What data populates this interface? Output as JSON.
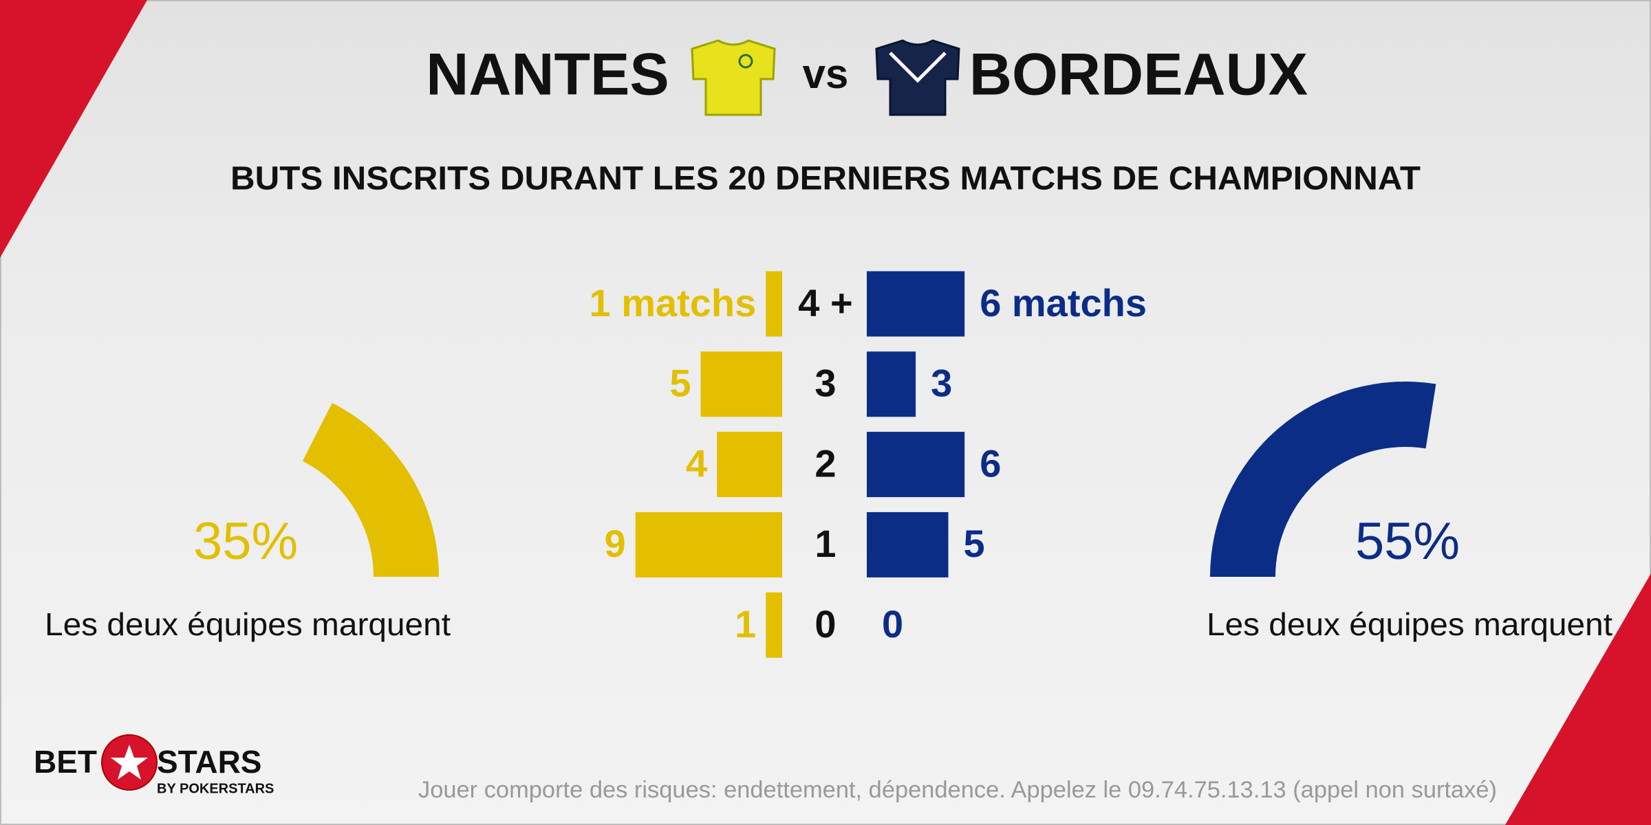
{
  "header": {
    "home_team": "NANTES",
    "versus": "vs",
    "away_team": "BORDEAUX",
    "subtitle": "BUTS INSCRITS DURANT LES 20 DERNIERS MATCHS DE CHAMPIONNAT"
  },
  "chart_data": [
    {
      "type": "butterfly",
      "categories": [
        "4 +",
        "3",
        "2",
        "1",
        "0"
      ],
      "series": [
        {
          "color": "#e3bf00",
          "values": [
            1,
            5,
            4,
            9,
            1
          ],
          "value_labels": [
            "1 matchs",
            "5",
            "4",
            "9",
            "1"
          ]
        },
        {
          "color": "#0b2d86",
          "values": [
            6,
            3,
            6,
            5,
            0
          ],
          "value_labels": [
            "6 matchs",
            "3",
            "6",
            "5",
            "0"
          ]
        }
      ]
    },
    {
      "type": "gauge",
      "values": [
        35
      ],
      "value_labels": [
        "35%"
      ],
      "caption": "Les deux équipes marquent",
      "color": "#e3bf00",
      "ylim": [
        0,
        100
      ],
      "start": "right"
    },
    {
      "type": "gauge",
      "values": [
        55
      ],
      "value_labels": [
        "55%"
      ],
      "caption": "Les deux équipes marquent",
      "color": "#0b2d86",
      "ylim": [
        0,
        100
      ],
      "start": "left"
    }
  ],
  "footer": {
    "brand_left": "BET",
    "brand_right": "STARS",
    "brand_sub": "BY POKERSTARS",
    "disclaimer": "Jouer comporte des risques: endettement, dépendence. Appelez le 09.74.75.13.13 (appel non surtaxé)"
  }
}
